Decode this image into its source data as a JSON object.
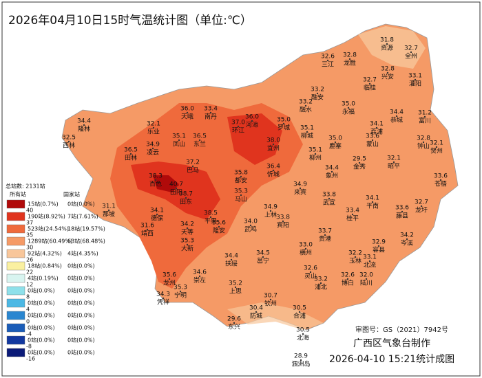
{
  "header": {
    "title": "2026年04月10日15时气温统计图（单位:℃）"
  },
  "legend": {
    "total": "总站数: 2131站",
    "all_header": "所有站",
    "national_header": "国家站",
    "rows": [
      {
        "color": "#b00a0a",
        "all": "15站(0.7%)",
        "national": "0站(0.0%)",
        "threshold": "40"
      },
      {
        "color": "#e0341e",
        "all": "190站(8.92%)",
        "national": "7站(7.61%)",
        "threshold": "37"
      },
      {
        "color": "#ef6a3c",
        "all": "523站(24.54%)",
        "national": "18站(19.57%)",
        "threshold": "35"
      },
      {
        "color": "#f59a66",
        "all": "1289站(60.49%)",
        "national": "63站(68.48%)",
        "threshold": "30"
      },
      {
        "color": "#f8c69a",
        "all": "92站(4.32%)",
        "national": "4站(4.35%)",
        "threshold": "26"
      },
      {
        "color": "#faf0a0",
        "all": "18站(0.84%)",
        "national": "0站(0.0%)",
        "threshold": "22"
      },
      {
        "color": "#d8f4f0",
        "all": "4站(0.19%)",
        "national": "0站(0.0%)",
        "threshold": "12"
      },
      {
        "color": "#8ee0ea",
        "all": "0站(0.0%)",
        "national": "0站(0.0%)",
        "threshold": "8"
      },
      {
        "color": "#4cb8e4",
        "all": "0站(0.0%)",
        "national": "0站(0.0%)",
        "threshold": "4"
      },
      {
        "color": "#2a86d0",
        "all": "0站(0.0%)",
        "national": "0站(0.0%)",
        "threshold": "0"
      },
      {
        "color": "#1a5cb8",
        "all": "0站(0.0%)",
        "national": "0站(0.0%)",
        "threshold": "-4"
      },
      {
        "color": "#1238a0",
        "all": "0站(0.0%)",
        "national": "0站(0.0%)",
        "threshold": "-8"
      },
      {
        "color": "#0a1a78",
        "all": "0站(0.0%)",
        "national": "0站(0.0%)",
        "threshold": "-16"
      }
    ]
  },
  "stations": [
    {
      "name": "资源",
      "value": "31.8"
    },
    {
      "name": "全州",
      "value": "32.7"
    },
    {
      "name": "三江",
      "value": "32.6"
    },
    {
      "name": "龙胜",
      "value": "32.8"
    },
    {
      "name": "兴安",
      "value": "32.8"
    },
    {
      "name": "灌阳",
      "value": "33.1"
    },
    {
      "name": "融安",
      "value": "33.2"
    },
    {
      "name": "融水",
      "value": "33.2"
    },
    {
      "name": "临桂",
      "value": "32.7"
    },
    {
      "name": "永福",
      "value": "35.0"
    },
    {
      "name": "恭城",
      "value": "34.4"
    },
    {
      "name": "富川",
      "value": "31.2"
    },
    {
      "name": "荔浦",
      "value": "34.1"
    },
    {
      "name": "钟山",
      "value": "32.8"
    },
    {
      "name": "贺州",
      "value": "32.1"
    },
    {
      "name": "蒙山",
      "value": "33.6"
    },
    {
      "name": "昭平",
      "value": "32.1"
    },
    {
      "name": "苍梧",
      "value": "33.6"
    },
    {
      "name": "金秀",
      "value": "29.5"
    },
    {
      "name": "象州",
      "value": "34.4"
    },
    {
      "name": "鹿寨",
      "value": "35.0"
    },
    {
      "name": "柳城",
      "value": "35.1"
    },
    {
      "name": "柳州",
      "value": "35.1"
    },
    {
      "name": "罗城",
      "value": "35.0"
    },
    {
      "name": "环江",
      "value": "37.0"
    },
    {
      "name": "南丹",
      "value": "33.4"
    },
    {
      "name": "天峨",
      "value": "36.0"
    },
    {
      "name": "河池",
      "value": "36.0"
    },
    {
      "name": "宜州",
      "value": "38.0"
    },
    {
      "name": "隆林",
      "value": "34.4"
    },
    {
      "name": "西林",
      "value": "32.5"
    },
    {
      "name": "乐业",
      "value": "32.1"
    },
    {
      "name": "凤山",
      "value": "35.1"
    },
    {
      "name": "东兰",
      "value": "36.5"
    },
    {
      "name": "凌云",
      "value": "34.9"
    },
    {
      "name": "田林",
      "value": "36.5"
    },
    {
      "name": "巴马",
      "value": "37.2"
    },
    {
      "name": "都安",
      "value": "35.8"
    },
    {
      "name": "忻城",
      "value": "36.4"
    },
    {
      "name": "马山",
      "value": "35.3"
    },
    {
      "name": "来宾",
      "value": "34.9"
    },
    {
      "name": "百色",
      "value": "38.3"
    },
    {
      "name": "田阳",
      "value": "40.7"
    },
    {
      "name": "田东",
      "value": "38.7"
    },
    {
      "name": "那坡",
      "value": "31.1"
    },
    {
      "name": "德保",
      "value": "34.1"
    },
    {
      "name": "靖西",
      "value": "31.6"
    },
    {
      "name": "平果",
      "value": "38.5"
    },
    {
      "name": "隆安",
      "value": "35.6"
    },
    {
      "name": "天等",
      "value": "34.2"
    },
    {
      "name": "大新",
      "value": "35.3"
    },
    {
      "name": "武鸣",
      "value": "34.0"
    },
    {
      "name": "上林",
      "value": "34.9"
    },
    {
      "name": "宾阳",
      "value": "33.8"
    },
    {
      "name": "武宣",
      "value": "33.8"
    },
    {
      "name": "桂平",
      "value": "33.4"
    },
    {
      "name": "平南",
      "value": "34.1"
    },
    {
      "name": "藤县",
      "value": "33.6"
    },
    {
      "name": "龙圩",
      "value": "32.7"
    },
    {
      "name": "贵港",
      "value": "33.7"
    },
    {
      "name": "横州",
      "value": "33.0"
    },
    {
      "name": "邕宁",
      "value": "34.5"
    },
    {
      "name": "扶绥",
      "value": "34.4"
    },
    {
      "name": "龙州",
      "value": "35.6"
    },
    {
      "name": "崇左",
      "value": "34.6"
    },
    {
      "name": "宁明",
      "value": "35.3"
    },
    {
      "name": "凭祥",
      "value": "34.3"
    },
    {
      "name": "上思",
      "value": "35.2"
    },
    {
      "name": "钦州",
      "value": "30.7"
    },
    {
      "name": "灵山",
      "value": "32.6"
    },
    {
      "name": "浦北",
      "value": "33.2"
    },
    {
      "name": "玉林",
      "value": "32.2"
    },
    {
      "name": "北流",
      "value": "33.1"
    },
    {
      "name": "容县",
      "value": "32.9"
    },
    {
      "name": "岑溪",
      "value": "34.2"
    },
    {
      "name": "博白",
      "value": "32.6"
    },
    {
      "name": "陆川",
      "value": "32.0"
    },
    {
      "name": "东兴",
      "value": "29.6"
    },
    {
      "name": "防城",
      "value": "30.4"
    },
    {
      "name": "合浦",
      "value": "30.5"
    },
    {
      "name": "北海",
      "value": "30.5"
    },
    {
      "name": "涠洲岛",
      "value": "28.9"
    }
  ],
  "footer": {
    "approval": "审图号：GS（2021）7942号",
    "maker": "广西区气象台制作",
    "timestamp": "2026-04-10 15:21统计成图"
  }
}
